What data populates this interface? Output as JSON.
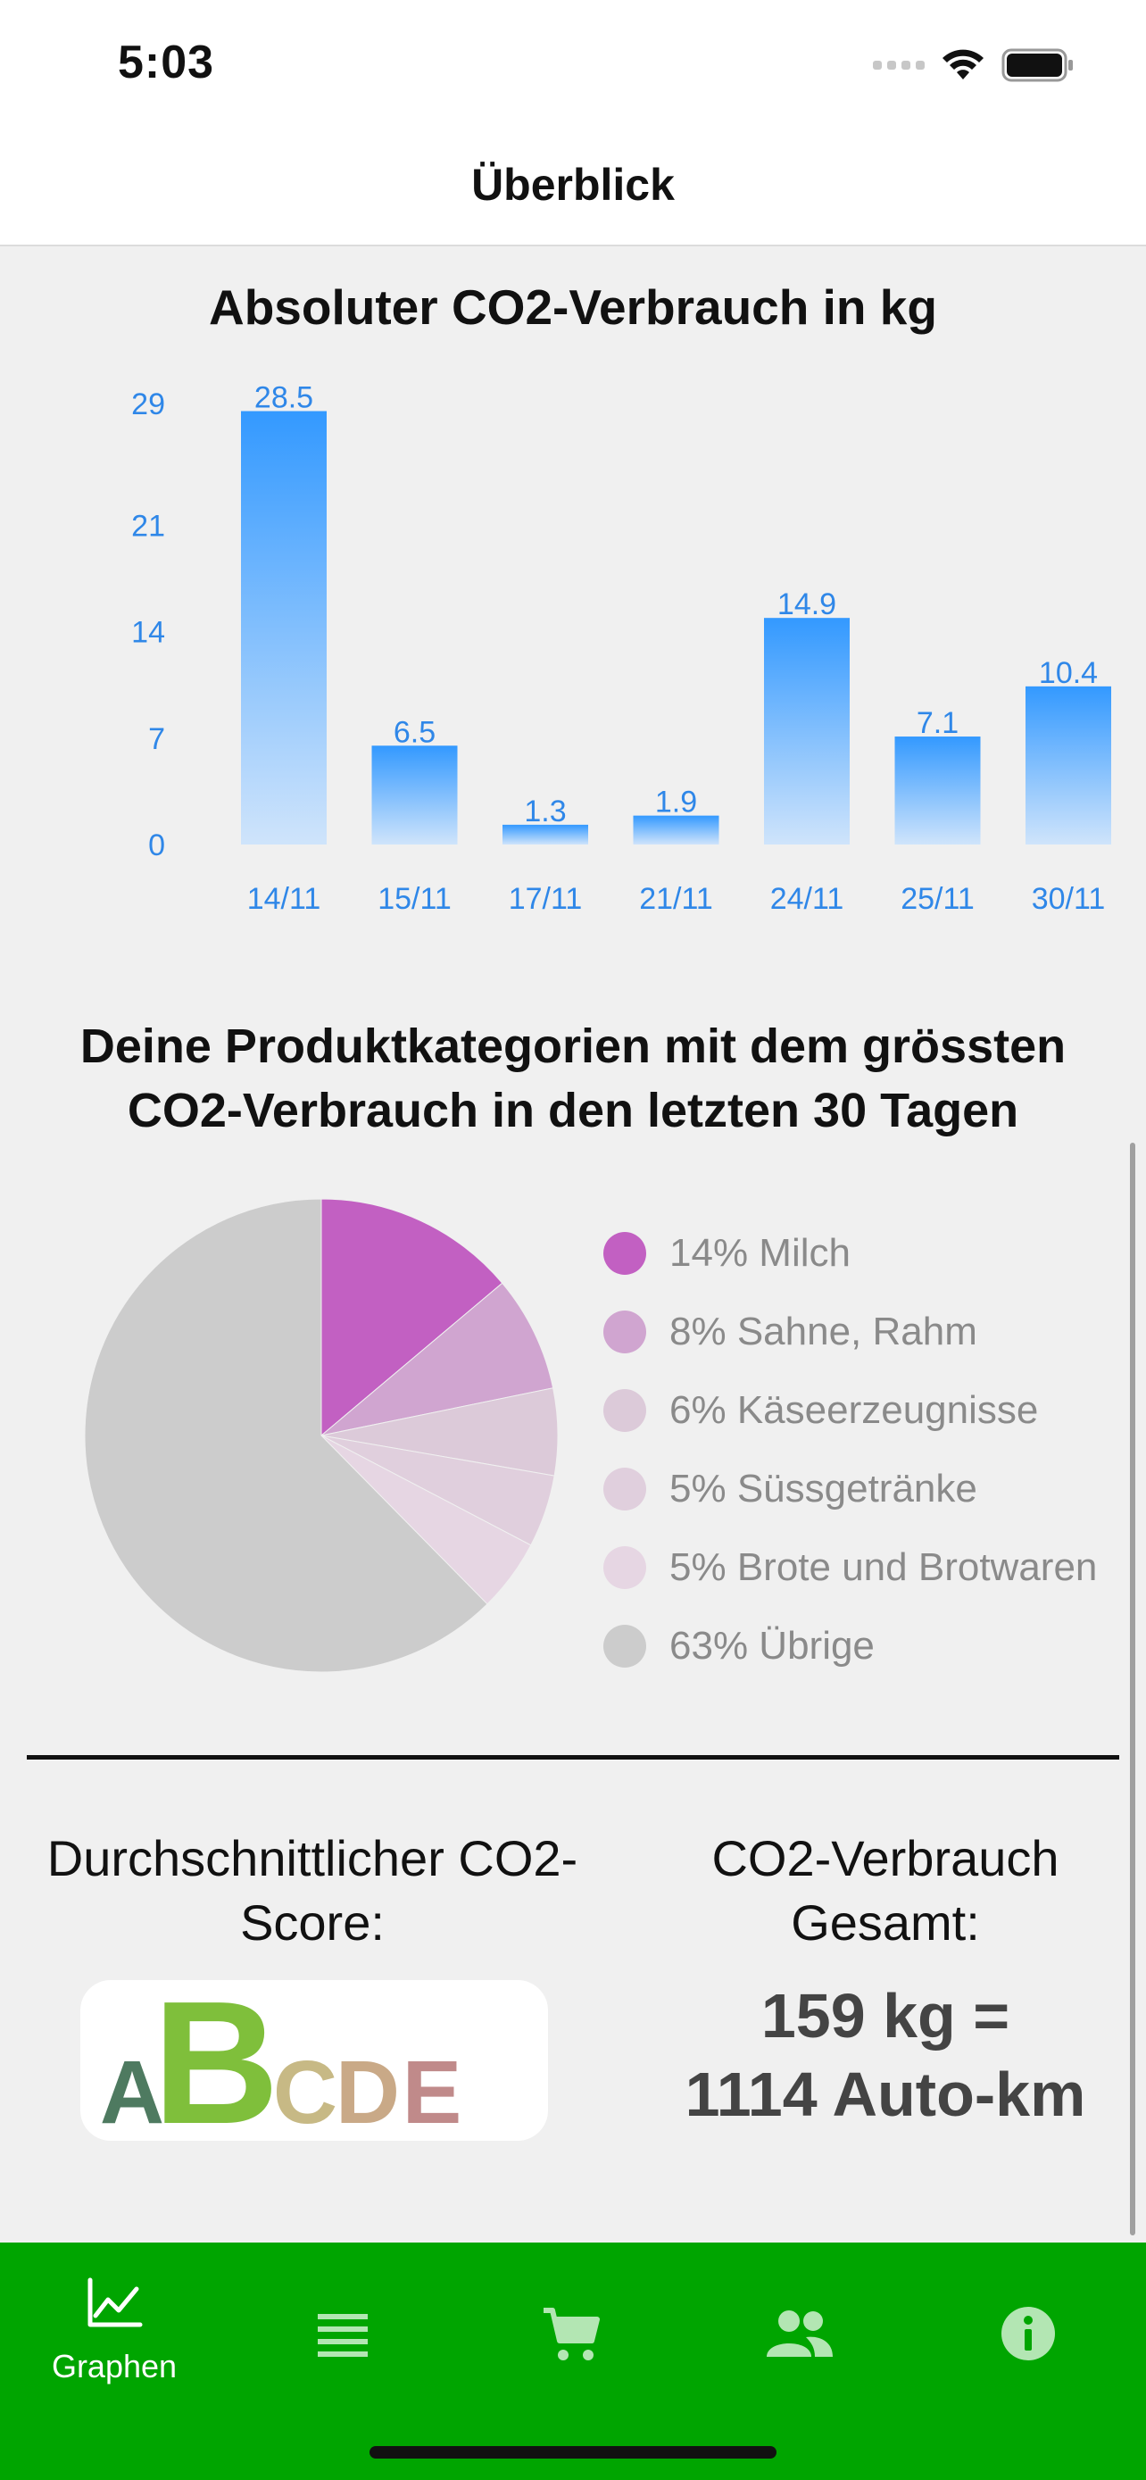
{
  "status_bar": {
    "time": "5:03"
  },
  "nav": {
    "title": "Überblick"
  },
  "bar_chart_title": "Absoluter CO2-Verbrauch in kg",
  "chart_data": [
    {
      "type": "bar",
      "title": "Absoluter CO2-Verbrauch in kg",
      "categories": [
        "14/11",
        "15/11",
        "17/11",
        "21/11",
        "24/11",
        "25/11",
        "30/11"
      ],
      "values": [
        28.5,
        6.5,
        1.3,
        1.9,
        14.9,
        7.1,
        10.4
      ],
      "value_labels": [
        "28.5",
        "6.5",
        "1.3",
        "1.9",
        "14.9",
        "7.1",
        "10.4"
      ],
      "yticks": [
        "29",
        "21",
        "14",
        "7",
        "0"
      ],
      "ytick_values": [
        29,
        21,
        14,
        7,
        0
      ],
      "ylim": [
        0,
        29
      ],
      "grid": false,
      "color_top": "#3399ff",
      "color_bottom": "#cfe4fb",
      "label_color": "#2f87e8"
    },
    {
      "type": "pie",
      "title": "Deine Produktkategorien mit dem grössten CO2-Verbrauch in den letzten 30 Tagen",
      "title_lines": [
        "Deine Produktkategorien mit dem grössten",
        "CO2-Verbrauch in den letzten 30 Tagen"
      ],
      "start": "top",
      "direction": "clockwise",
      "slices": [
        {
          "label": "14% Milch",
          "value": 14,
          "color": "#c260c2"
        },
        {
          "label": "8% Sahne, Rahm",
          "value": 8,
          "color": "#d0a5d0"
        },
        {
          "label": "6% Käseerzeugnisse",
          "value": 6,
          "color": "#dccad9"
        },
        {
          "label": "5% Süssgetränke",
          "value": 5,
          "color": "#e0cfdd"
        },
        {
          "label": "5% Brote und Brotwaren",
          "value": 5,
          "color": "#e6d6e3"
        },
        {
          "label": "63% Übrige",
          "value": 63,
          "color": "#cccccc"
        }
      ],
      "legend_placement": "right"
    }
  ],
  "summary": {
    "score_heading": "Durchschnittlicher CO2-Score:",
    "score_letters": [
      {
        "letter": "A",
        "color": "#4e7a60",
        "selected": false
      },
      {
        "letter": "B",
        "color": "#7fbf3b",
        "selected": true
      },
      {
        "letter": "C",
        "color": "#c7b985",
        "selected": false
      },
      {
        "letter": "D",
        "color": "#c9a987",
        "selected": false
      },
      {
        "letter": "E",
        "color": "#c08a8a",
        "selected": false
      }
    ],
    "total_heading": "CO2-Verbrauch Gesamt:",
    "total_value_line1": "159 kg =",
    "total_value_line2": "1114 Auto-km"
  },
  "tabbar": {
    "background": "#00a500",
    "tabs": [
      {
        "name": "tab-graphen",
        "icon": "chart-line-icon",
        "label": "Graphen",
        "active": true
      },
      {
        "name": "tab-list",
        "icon": "list-icon",
        "label": "",
        "active": false
      },
      {
        "name": "tab-cart",
        "icon": "cart-icon",
        "label": "",
        "active": false
      },
      {
        "name": "tab-people",
        "icon": "people-icon",
        "label": "",
        "active": false
      },
      {
        "name": "tab-info",
        "icon": "info-icon",
        "label": "",
        "active": false
      }
    ]
  }
}
